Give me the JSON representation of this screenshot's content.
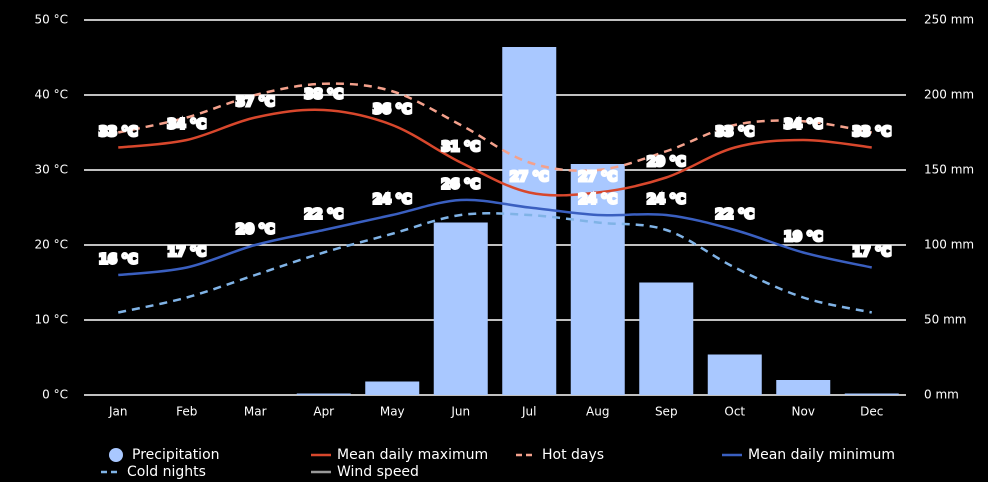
{
  "chart_data": {
    "type": "combo",
    "categories": [
      "Jan",
      "Feb",
      "Mar",
      "Apr",
      "May",
      "Jun",
      "Jul",
      "Aug",
      "Sep",
      "Oct",
      "Nov",
      "Dec"
    ],
    "ylim": [
      0,
      50
    ],
    "yticks": [
      {
        "value": 0,
        "label": "0 °C"
      },
      {
        "value": 10,
        "label": "10 °C"
      },
      {
        "value": 20,
        "label": "20 °C"
      },
      {
        "value": 30,
        "label": "30 °C"
      },
      {
        "value": 40,
        "label": "40 °C"
      },
      {
        "value": 50,
        "label": "50 °C"
      }
    ],
    "y2lim": [
      0,
      250
    ],
    "y2ticks": [
      {
        "value": 0,
        "label": "0 mm"
      },
      {
        "value": 50,
        "label": "50 mm"
      },
      {
        "value": 100,
        "label": "100 mm"
      },
      {
        "value": 150,
        "label": "150 mm"
      },
      {
        "value": 200,
        "label": "200 mm"
      },
      {
        "value": 250,
        "label": "250 mm"
      }
    ],
    "grid": true,
    "series": [
      {
        "name": "Precipitation",
        "type": "bar",
        "axis": "y2",
        "color": "#a9c8ff",
        "values": [
          0,
          0,
          0,
          1,
          9,
          115,
          232,
          154,
          75,
          27,
          10,
          1
        ]
      },
      {
        "name": "Mean daily maximum",
        "type": "line",
        "color": "#d8472c",
        "dash": false,
        "values": [
          33,
          34,
          37,
          38,
          36,
          31,
          27,
          27,
          29,
          33,
          34,
          33
        ],
        "value_labels": [
          "33 °C",
          "34 °C",
          "37 °C",
          "38 °C",
          "36 °C",
          "31 °C",
          "27 °C",
          "27 °C",
          "29 °C",
          "33 °C",
          "34 °C",
          "33 °C"
        ]
      },
      {
        "name": "Hot days",
        "type": "line",
        "color": "#f4a18c",
        "dash": true,
        "values": [
          35,
          37,
          40,
          41.5,
          40.5,
          36,
          31,
          30,
          32.5,
          36,
          36.5,
          35
        ]
      },
      {
        "name": "Mean daily minimum",
        "type": "line",
        "color": "#3a5fc0",
        "dash": false,
        "values": [
          16,
          17,
          20,
          22,
          24,
          26,
          25,
          24,
          24,
          22,
          19,
          17
        ],
        "value_labels": [
          "16 °C",
          "17 °C",
          "20 °C",
          "22 °C",
          "24 °C",
          "26 °C",
          null,
          "24 °C",
          "24 °C",
          "22 °C",
          "19 °C",
          "17 °C"
        ]
      },
      {
        "name": "Cold nights",
        "type": "line",
        "color": "#80b3e6",
        "dash": true,
        "values": [
          11,
          13,
          16,
          19,
          21.5,
          24,
          24,
          23,
          22,
          17,
          13,
          11
        ]
      },
      {
        "name": "Wind speed",
        "type": "line",
        "color": "#999999",
        "dash": false,
        "values": [
          null,
          null,
          null,
          null,
          null,
          null,
          null,
          null,
          null,
          null,
          null,
          null
        ]
      }
    ]
  }
}
